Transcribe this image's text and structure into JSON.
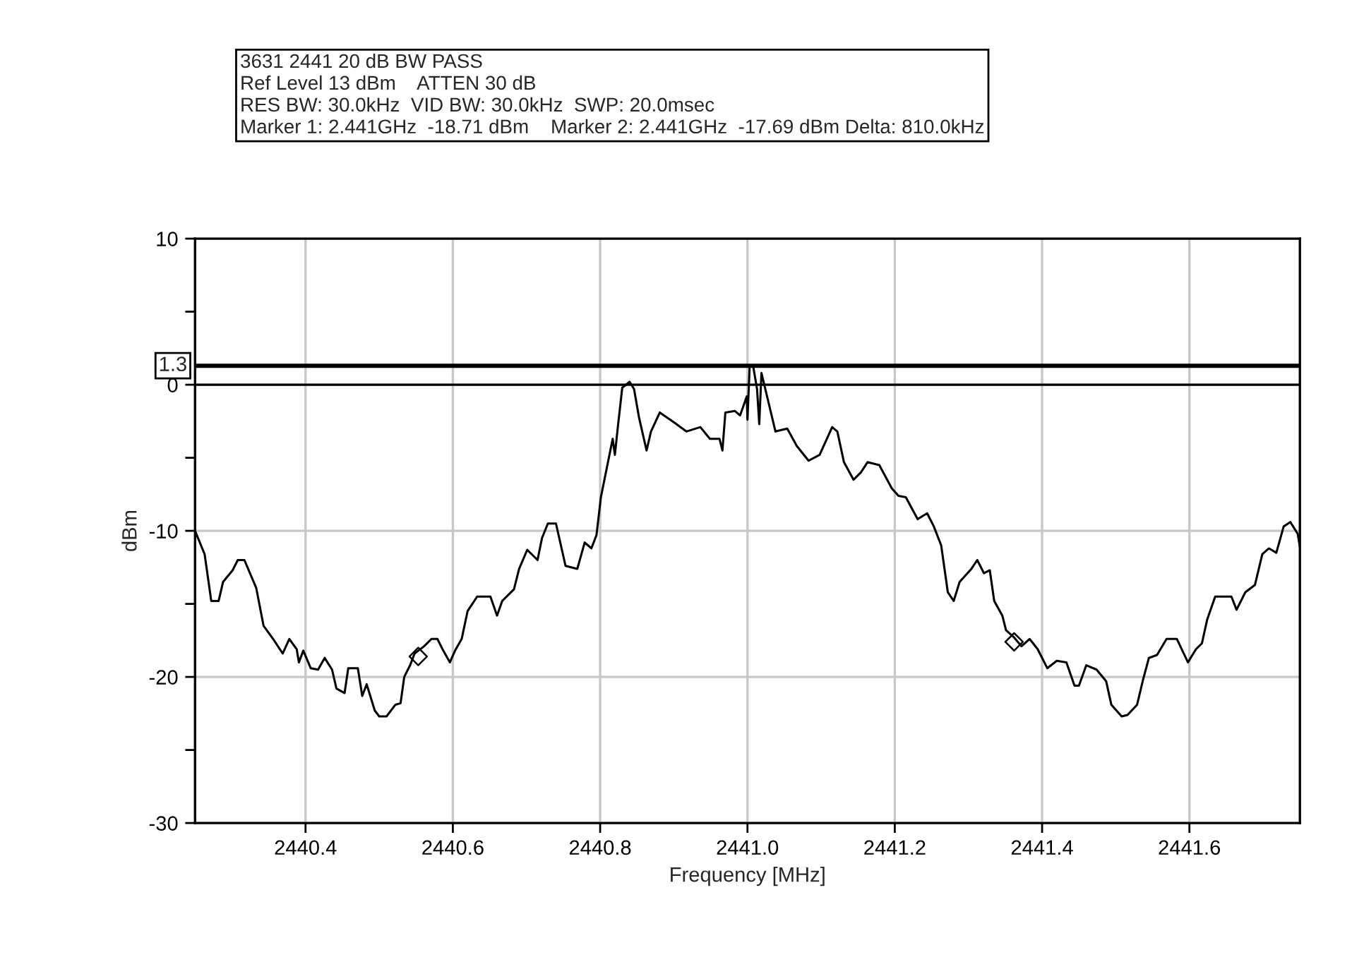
{
  "chart_data": {
    "type": "line",
    "xlabel": "Frequency [MHz]",
    "ylabel": "dBm",
    "annotations": [
      "3631 2441 20 dB BW PASS",
      "Ref Level 13 dBm    ATTEN 30 dB",
      "RES BW: 30.0kHz  VID BW: 30.0kHz  SWP: 20.0msec",
      "Marker 1: 2.441GHz  -18.71 dBm    Marker 2: 2.441GHz  -17.69 dBm Delta: 810.0kHz"
    ],
    "xlim": [
      2440.25,
      2441.75
    ],
    "ylim": [
      -30,
      10
    ],
    "xticks": [
      2440.4,
      2440.6,
      2440.8,
      {
        "value": 2441,
        "label": "2441.0"
      },
      2441.2,
      2441.4,
      2441.6
    ],
    "yticks": [
      10,
      {
        "value": 5,
        "label": null
      },
      0,
      {
        "value": -5,
        "label": null
      },
      -10,
      {
        "value": -15,
        "label": null
      },
      -20,
      {
        "value": -25,
        "label": null
      },
      -30
    ],
    "grid": true,
    "legend": false,
    "ref_lines": [
      {
        "axis": "y",
        "value": 1.3,
        "label": "1.3",
        "color": "#000000",
        "line_style": "solid"
      },
      {
        "axis": "y",
        "value": 0,
        "label": null,
        "color": "#000000",
        "line_style": "solid"
      }
    ],
    "series": [
      {
        "color": "#000000",
        "marker": "none",
        "line_style": "solid",
        "x": [
          2440.25,
          2440.263,
          2440.272,
          2440.282,
          2440.288,
          2440.301,
          2440.308,
          2440.317,
          2440.333,
          2440.343,
          2440.356,
          2440.369,
          2440.378,
          2440.388,
          2440.391,
          2440.397,
          2440.407,
          2440.417,
          2440.426,
          2440.436,
          2440.442,
          2440.453,
          2440.458,
          2440.471,
          2440.477,
          2440.483,
          2440.494,
          2440.5,
          2440.51,
          2440.522,
          2440.529,
          2440.534,
          2440.542,
          2440.548,
          2440.561,
          2440.571,
          2440.579,
          2440.587,
          2440.596,
          2440.603,
          2440.612,
          2440.62,
          2440.633,
          2440.651,
          2440.66,
          2440.667,
          2440.683,
          2440.69,
          2440.701,
          2440.715,
          2440.721,
          2440.729,
          2440.74,
          2440.753,
          2440.769,
          2440.779,
          2440.788,
          2440.795,
          2440.801,
          2440.811,
          2440.817,
          2440.82,
          2440.824,
          2440.83,
          2440.84,
          2440.846,
          2440.853,
          2440.863,
          2440.869,
          2440.881,
          2440.901,
          2440.917,
          2440.936,
          2440.949,
          2440.962,
          2440.966,
          2440.97,
          2440.983,
          2440.99,
          2440.999,
          2441.0,
          2441.003,
          2441.008,
          2441.013,
          2441.016,
          2441.019,
          2441.029,
          2441.038,
          2441.054,
          2441.067,
          2441.083,
          2441.098,
          2441.115,
          2441.122,
          2441.131,
          2441.144,
          2441.154,
          2441.163,
          2441.179,
          2441.196,
          2441.205,
          2441.215,
          2441.231,
          2441.244,
          2441.253,
          2441.263,
          2441.272,
          2441.28,
          2441.288,
          2441.304,
          2441.312,
          2441.321,
          2441.329,
          2441.335,
          2441.346,
          2441.351,
          2441.362,
          2441.372,
          2441.383,
          2441.394,
          2441.407,
          2441.42,
          2441.433,
          2441.444,
          2441.45,
          2441.46,
          2441.474,
          2441.487,
          2441.494,
          2441.508,
          2441.516,
          2441.529,
          2441.537,
          2441.545,
          2441.556,
          2441.569,
          2441.583,
          2441.598,
          2441.609,
          2441.617,
          2441.624,
          2441.635,
          2441.657,
          2441.664,
          2441.676,
          2441.689,
          2441.699,
          2441.708,
          2441.718,
          2441.728,
          2441.737,
          2441.747,
          2441.75
        ],
        "values": [
          -10.0,
          -11.6,
          -14.8,
          -14.8,
          -13.5,
          -12.7,
          -12.0,
          -12.0,
          -13.9,
          -16.5,
          -17.4,
          -18.4,
          -17.4,
          -18.1,
          -19.0,
          -18.2,
          -19.4,
          -19.5,
          -18.7,
          -19.5,
          -20.8,
          -21.1,
          -19.4,
          -19.4,
          -21.3,
          -20.5,
          -22.3,
          -22.7,
          -22.7,
          -21.9,
          -21.8,
          -20.0,
          -19.2,
          -18.4,
          -17.9,
          -17.4,
          -17.4,
          -18.2,
          -19.0,
          -18.2,
          -17.4,
          -15.5,
          -14.5,
          -14.5,
          -15.8,
          -14.8,
          -14.0,
          -12.6,
          -11.3,
          -12.0,
          -10.5,
          -9.5,
          -9.5,
          -12.4,
          -12.6,
          -10.8,
          -11.2,
          -10.3,
          -7.7,
          -5.2,
          -3.7,
          -4.8,
          -2.9,
          -0.2,
          0.2,
          -0.3,
          -2.3,
          -4.5,
          -3.2,
          -1.9,
          -2.6,
          -3.2,
          -2.9,
          -3.7,
          -3.7,
          -4.5,
          -1.9,
          -1.8,
          -2.1,
          -0.8,
          -2.4,
          1.3,
          1.2,
          -0.3,
          -2.7,
          0.8,
          -1.3,
          -3.2,
          -3.0,
          -4.2,
          -5.2,
          -4.8,
          -2.9,
          -3.2,
          -5.3,
          -6.5,
          -6.0,
          -5.3,
          -5.5,
          -7.1,
          -7.6,
          -7.7,
          -9.2,
          -8.8,
          -9.7,
          -11.0,
          -14.2,
          -14.8,
          -13.5,
          -12.6,
          -12.0,
          -12.9,
          -12.7,
          -14.8,
          -15.8,
          -16.8,
          -17.3,
          -17.9,
          -17.4,
          -18.1,
          -19.4,
          -18.9,
          -19.0,
          -20.6,
          -20.6,
          -19.2,
          -19.5,
          -20.3,
          -21.9,
          -22.7,
          -22.6,
          -21.9,
          -20.2,
          -18.7,
          -18.5,
          -17.4,
          -17.4,
          -19.0,
          -18.1,
          -17.7,
          -16.1,
          -14.5,
          -14.5,
          -15.4,
          -14.2,
          -13.7,
          -11.6,
          -11.2,
          -11.5,
          -9.7,
          -9.4,
          -10.2,
          -11.1
        ]
      },
      {
        "type": "scatter",
        "color": "#000000",
        "marker": "diamond",
        "x": [
          2440.553,
          2441.362
        ],
        "values": [
          -18.6,
          -17.6
        ]
      }
    ]
  }
}
